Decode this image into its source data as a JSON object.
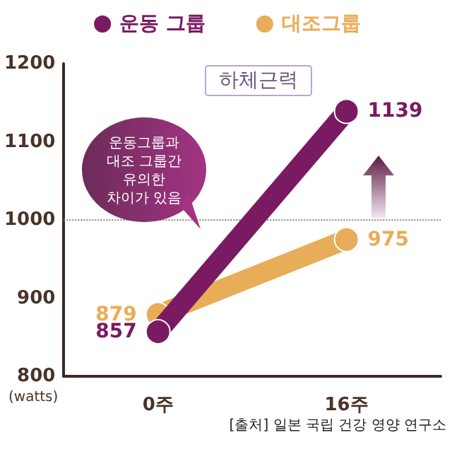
{
  "chart_data": {
    "type": "line",
    "title": "하체근력",
    "ylabel": "(watts)",
    "categories": [
      "0주",
      "16주"
    ],
    "series": [
      {
        "name": "운동 그룹",
        "color": "#7a1a62",
        "values": [
          857,
          1139
        ]
      },
      {
        "name": "대조그룹",
        "color": "#e8ad58",
        "values": [
          879,
          975
        ]
      }
    ],
    "ylim": [
      800,
      1200
    ],
    "yticks": [
      800,
      900,
      1000,
      1100,
      1200
    ],
    "ref_lines": [
      {
        "axis": "y",
        "value": 1000,
        "color": "#888888",
        "line_style": "dotted"
      }
    ],
    "annotations": [
      "운동그룹과\n대조 그룹간\n유의한\n차이가 있음",
      "[출처] 일본 국립 건강 영양 연구소"
    ],
    "data_labels": true,
    "legend": "top",
    "grid": false,
    "marker": "circle",
    "line_style": "solid"
  }
}
